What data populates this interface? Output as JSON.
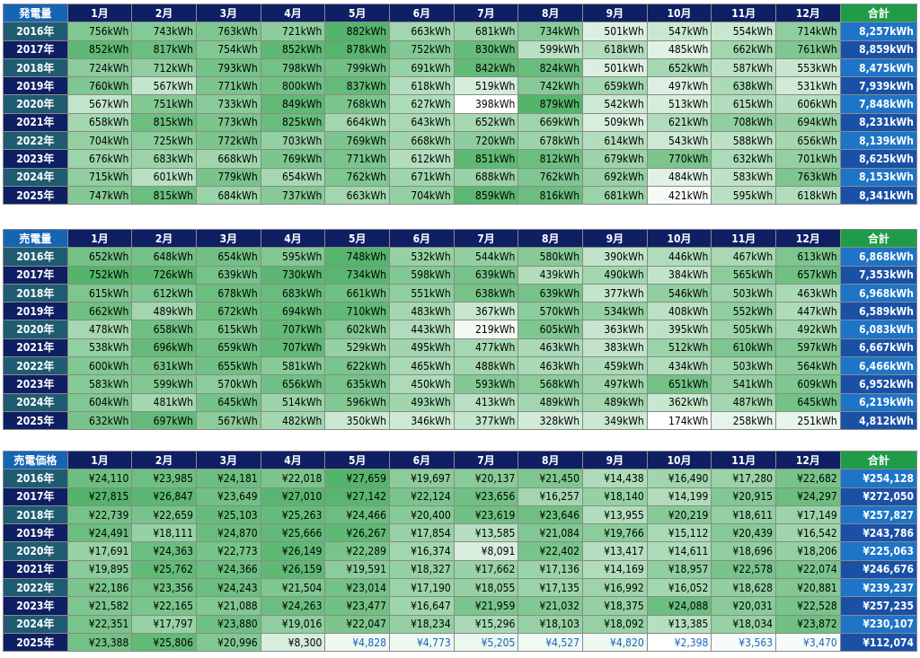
{
  "colors": {
    "header_corner": "#1565b5",
    "header_month": "#0f1f63",
    "header_total": "#1f9c48",
    "year_odd": "#1f5c72",
    "year_even": "#0f1f63",
    "total_odd": "#1e74c6",
    "total_even": "#1a51a6",
    "cell_min": "#ffffff",
    "cell_max": "#54b46b",
    "low_text": "#1565c0"
  },
  "months": [
    "1月",
    "2月",
    "3月",
    "4月",
    "5月",
    "6月",
    "7月",
    "8月",
    "9月",
    "10月",
    "11月",
    "12月"
  ],
  "total_label": "合計",
  "tables": [
    {
      "id": "generation",
      "corner": "発電量",
      "rows": [
        {
          "year": "2016年",
          "cells": [
            "756kWh",
            "743kWh",
            "763kWh",
            "721kWh",
            "882kWh",
            "663kWh",
            "681kWh",
            "734kWh",
            "501kWh",
            "547kWh",
            "554kWh",
            "714kWh"
          ],
          "total": "8,257kWh"
        },
        {
          "year": "2017年",
          "cells": [
            "852kWh",
            "817kWh",
            "754kWh",
            "852kWh",
            "878kWh",
            "752kWh",
            "830kWh",
            "599kWh",
            "618kWh",
            "485kWh",
            "662kWh",
            "761kWh"
          ],
          "total": "8,859kWh"
        },
        {
          "year": "2018年",
          "cells": [
            "724kWh",
            "712kWh",
            "793kWh",
            "798kWh",
            "799kWh",
            "691kWh",
            "842kWh",
            "824kWh",
            "501kWh",
            "652kWh",
            "587kWh",
            "553kWh"
          ],
          "total": "8,475kWh"
        },
        {
          "year": "2019年",
          "cells": [
            "760kWh",
            "567kWh",
            "771kWh",
            "800kWh",
            "837kWh",
            "618kWh",
            "519kWh",
            "742kWh",
            "659kWh",
            "497kWh",
            "638kWh",
            "531kWh"
          ],
          "total": "7,939kWh"
        },
        {
          "year": "2020年",
          "cells": [
            "567kWh",
            "751kWh",
            "733kWh",
            "849kWh",
            "768kWh",
            "627kWh",
            "398kWh",
            "879kWh",
            "542kWh",
            "513kWh",
            "615kWh",
            "606kWh"
          ],
          "total": "7,848kWh"
        },
        {
          "year": "2021年",
          "cells": [
            "658kWh",
            "815kWh",
            "773kWh",
            "825kWh",
            "664kWh",
            "643kWh",
            "652kWh",
            "669kWh",
            "509kWh",
            "621kWh",
            "708kWh",
            "694kWh"
          ],
          "total": "8,231kWh"
        },
        {
          "year": "2022年",
          "cells": [
            "704kWh",
            "725kWh",
            "772kWh",
            "703kWh",
            "769kWh",
            "668kWh",
            "720kWh",
            "678kWh",
            "614kWh",
            "543kWh",
            "588kWh",
            "656kWh"
          ],
          "total": "8,139kWh"
        },
        {
          "year": "2023年",
          "cells": [
            "676kWh",
            "683kWh",
            "668kWh",
            "769kWh",
            "771kWh",
            "612kWh",
            "851kWh",
            "812kWh",
            "679kWh",
            "770kWh",
            "632kWh",
            "701kWh"
          ],
          "total": "8,625kWh"
        },
        {
          "year": "2024年",
          "cells": [
            "715kWh",
            "601kWh",
            "779kWh",
            "654kWh",
            "762kWh",
            "671kWh",
            "688kWh",
            "762kWh",
            "692kWh",
            "484kWh",
            "583kWh",
            "763kWh"
          ],
          "total": "8,153kWh"
        },
        {
          "year": "2025年",
          "cells": [
            "747kWh",
            "815kWh",
            "684kWh",
            "737kWh",
            "663kWh",
            "704kWh",
            "859kWh",
            "816kWh",
            "681kWh",
            "421kWh",
            "595kWh",
            "618kWh"
          ],
          "total": "8,341kWh"
        }
      ]
    },
    {
      "id": "sales",
      "corner": "売電量",
      "rows": [
        {
          "year": "2016年",
          "cells": [
            "652kWh",
            "648kWh",
            "654kWh",
            "595kWh",
            "748kWh",
            "532kWh",
            "544kWh",
            "580kWh",
            "390kWh",
            "446kWh",
            "467kWh",
            "613kWh"
          ],
          "total": "6,868kWh"
        },
        {
          "year": "2017年",
          "cells": [
            "752kWh",
            "726kWh",
            "639kWh",
            "730kWh",
            "734kWh",
            "598kWh",
            "639kWh",
            "439kWh",
            "490kWh",
            "384kWh",
            "565kWh",
            "657kWh"
          ],
          "total": "7,353kWh"
        },
        {
          "year": "2018年",
          "cells": [
            "615kWh",
            "612kWh",
            "678kWh",
            "683kWh",
            "661kWh",
            "551kWh",
            "638kWh",
            "639kWh",
            "377kWh",
            "546kWh",
            "503kWh",
            "463kWh"
          ],
          "total": "6,968kWh"
        },
        {
          "year": "2019年",
          "cells": [
            "662kWh",
            "489kWh",
            "672kWh",
            "694kWh",
            "710kWh",
            "483kWh",
            "367kWh",
            "570kWh",
            "534kWh",
            "408kWh",
            "552kWh",
            "447kWh"
          ],
          "total": "6,589kWh"
        },
        {
          "year": "2020年",
          "cells": [
            "478kWh",
            "658kWh",
            "615kWh",
            "707kWh",
            "602kWh",
            "443kWh",
            "219kWh",
            "605kWh",
            "363kWh",
            "395kWh",
            "505kWh",
            "492kWh"
          ],
          "total": "6,083kWh"
        },
        {
          "year": "2021年",
          "cells": [
            "538kWh",
            "696kWh",
            "659kWh",
            "707kWh",
            "529kWh",
            "495kWh",
            "477kWh",
            "463kWh",
            "383kWh",
            "512kWh",
            "610kWh",
            "597kWh"
          ],
          "total": "6,667kWh"
        },
        {
          "year": "2022年",
          "cells": [
            "600kWh",
            "631kWh",
            "655kWh",
            "581kWh",
            "622kWh",
            "465kWh",
            "488kWh",
            "463kWh",
            "459kWh",
            "434kWh",
            "503kWh",
            "564kWh"
          ],
          "total": "6,466kWh"
        },
        {
          "year": "2023年",
          "cells": [
            "583kWh",
            "599kWh",
            "570kWh",
            "656kWh",
            "635kWh",
            "450kWh",
            "593kWh",
            "568kWh",
            "497kWh",
            "651kWh",
            "541kWh",
            "609kWh"
          ],
          "total": "6,952kWh"
        },
        {
          "year": "2024年",
          "cells": [
            "604kWh",
            "481kWh",
            "645kWh",
            "514kWh",
            "596kWh",
            "493kWh",
            "413kWh",
            "489kWh",
            "489kWh",
            "362kWh",
            "487kWh",
            "645kWh"
          ],
          "total": "6,219kWh"
        },
        {
          "year": "2025年",
          "cells": [
            "632kWh",
            "697kWh",
            "567kWh",
            "482kWh",
            "350kWh",
            "346kWh",
            "377kWh",
            "328kWh",
            "349kWh",
            "174kWh",
            "258kWh",
            "251kWh"
          ],
          "total": "4,812kWh"
        }
      ]
    },
    {
      "id": "price",
      "corner": "売電価格",
      "rows": [
        {
          "year": "2016年",
          "cells": [
            "¥24,110",
            "¥23,985",
            "¥24,181",
            "¥22,018",
            "¥27,659",
            "¥19,697",
            "¥20,137",
            "¥21,450",
            "¥14,438",
            "¥16,490",
            "¥17,280",
            "¥22,682"
          ],
          "total": "¥254,128"
        },
        {
          "year": "2017年",
          "cells": [
            "¥27,815",
            "¥26,847",
            "¥23,649",
            "¥27,010",
            "¥27,142",
            "¥22,124",
            "¥23,656",
            "¥16,257",
            "¥18,140",
            "¥14,199",
            "¥20,915",
            "¥24,297"
          ],
          "total": "¥272,050"
        },
        {
          "year": "2018年",
          "cells": [
            "¥22,739",
            "¥22,659",
            "¥25,103",
            "¥25,263",
            "¥24,466",
            "¥20,400",
            "¥23,619",
            "¥23,646",
            "¥13,955",
            "¥20,219",
            "¥18,611",
            "¥17,149"
          ],
          "total": "¥257,827"
        },
        {
          "year": "2019年",
          "cells": [
            "¥24,491",
            "¥18,111",
            "¥24,870",
            "¥25,666",
            "¥26,267",
            "¥17,854",
            "¥13,585",
            "¥21,084",
            "¥19,766",
            "¥15,112",
            "¥20,439",
            "¥16,542"
          ],
          "total": "¥243,786"
        },
        {
          "year": "2020年",
          "cells": [
            "¥17,691",
            "¥24,363",
            "¥22,773",
            "¥26,149",
            "¥22,289",
            "¥16,374",
            "¥8,091",
            "¥22,402",
            "¥13,417",
            "¥14,611",
            "¥18,696",
            "¥18,206"
          ],
          "total": "¥225,063"
        },
        {
          "year": "2021年",
          "cells": [
            "¥19,895",
            "¥25,762",
            "¥24,366",
            "¥26,159",
            "¥19,591",
            "¥18,327",
            "¥17,662",
            "¥17,136",
            "¥14,169",
            "¥18,957",
            "¥22,578",
            "¥22,074"
          ],
          "total": "¥246,676"
        },
        {
          "year": "2022年",
          "cells": [
            "¥22,186",
            "¥23,356",
            "¥24,243",
            "¥21,504",
            "¥23,014",
            "¥17,190",
            "¥18,055",
            "¥17,135",
            "¥16,992",
            "¥16,052",
            "¥18,628",
            "¥20,881"
          ],
          "total": "¥239,237"
        },
        {
          "year": "2023年",
          "cells": [
            "¥21,582",
            "¥22,165",
            "¥21,088",
            "¥24,263",
            "¥23,477",
            "¥16,647",
            "¥21,959",
            "¥21,032",
            "¥18,375",
            "¥24,088",
            "¥20,031",
            "¥22,528"
          ],
          "total": "¥257,235"
        },
        {
          "year": "2024年",
          "cells": [
            "¥22,351",
            "¥17,797",
            "¥23,880",
            "¥19,016",
            "¥22,047",
            "¥18,234",
            "¥15,296",
            "¥18,103",
            "¥18,092",
            "¥13,385",
            "¥18,034",
            "¥23,872"
          ],
          "total": "¥230,107"
        },
        {
          "year": "2025年",
          "cells": [
            "¥23,388",
            "¥25,806",
            "¥20,996",
            "¥8,300",
            "¥4,828",
            "¥4,773",
            "¥5,205",
            "¥4,527",
            "¥4,820",
            "¥2,398",
            "¥3,563",
            "¥3,470"
          ],
          "total": "¥112,074"
        }
      ]
    }
  ]
}
